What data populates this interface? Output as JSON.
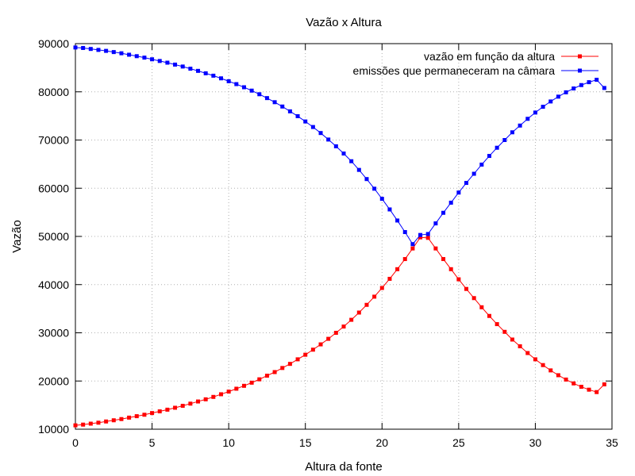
{
  "chart_data": {
    "type": "line",
    "title": "Vazão x Altura",
    "xlabel": "Altura da fonte",
    "ylabel": "Vazão",
    "xlim": [
      0,
      35
    ],
    "ylim": [
      10000,
      90000
    ],
    "xticks": [
      0,
      5,
      10,
      15,
      20,
      25,
      30,
      35
    ],
    "yticks": [
      10000,
      20000,
      30000,
      40000,
      50000,
      60000,
      70000,
      80000,
      90000
    ],
    "grid": true,
    "legend_position": "top-right",
    "series": [
      {
        "name": "vazão em função da altura",
        "color": "#ff0000",
        "x": [
          0,
          0.5,
          1,
          1.5,
          2,
          2.5,
          3,
          3.5,
          4,
          4.5,
          5,
          5.5,
          6,
          6.5,
          7,
          7.5,
          8,
          8.5,
          9,
          9.5,
          10,
          10.5,
          11,
          11.5,
          12,
          12.5,
          13,
          13.5,
          14,
          14.5,
          15,
          15.5,
          16,
          16.5,
          17,
          17.5,
          18,
          18.5,
          19,
          19.5,
          20,
          20.5,
          21,
          21.5,
          22,
          22.5,
          23,
          23.5,
          24,
          24.5,
          25,
          25.5,
          26,
          26.5,
          27,
          27.5,
          28,
          28.5,
          29,
          29.5,
          30,
          30.5,
          31,
          31.5,
          32,
          32.5,
          33,
          33.5,
          34,
          34.5
        ],
        "y": [
          10800,
          10950,
          11150,
          11350,
          11600,
          11850,
          12100,
          12400,
          12700,
          13000,
          13350,
          13700,
          14050,
          14450,
          14850,
          15300,
          15750,
          16200,
          16700,
          17250,
          17800,
          18400,
          19000,
          19650,
          20350,
          21100,
          21850,
          22700,
          23550,
          24500,
          25450,
          26500,
          27600,
          28750,
          30000,
          31300,
          32700,
          34200,
          35800,
          37500,
          39300,
          41200,
          43200,
          45300,
          47500,
          49800,
          49700,
          47500,
          45300,
          43200,
          41100,
          39100,
          37200,
          35300,
          33500,
          31800,
          30200,
          28600,
          27200,
          25800,
          24500,
          23300,
          22200,
          21200,
          20300,
          19500,
          18800,
          18200,
          17700,
          19300
        ]
      },
      {
        "name": "emissões que permaneceram na câmara",
        "color": "#0000ff",
        "x": [
          0,
          0.5,
          1,
          1.5,
          2,
          2.5,
          3,
          3.5,
          4,
          4.5,
          5,
          5.5,
          6,
          6.5,
          7,
          7.5,
          8,
          8.5,
          9,
          9.5,
          10,
          10.5,
          11,
          11.5,
          12,
          12.5,
          13,
          13.5,
          14,
          14.5,
          15,
          15.5,
          16,
          16.5,
          17,
          17.5,
          18,
          18.5,
          19,
          19.5,
          20,
          20.5,
          21,
          21.5,
          22,
          22.5,
          23,
          23.5,
          24,
          24.5,
          25,
          25.5,
          26,
          26.5,
          27,
          27.5,
          28,
          28.5,
          29,
          29.5,
          30,
          30.5,
          31,
          31.5,
          32,
          32.5,
          33,
          33.5,
          34,
          34.5
        ],
        "y": [
          89200,
          89100,
          88900,
          88700,
          88500,
          88250,
          88000,
          87700,
          87400,
          87100,
          86750,
          86400,
          86050,
          85650,
          85250,
          84800,
          84350,
          83850,
          83350,
          82800,
          82200,
          81600,
          80950,
          80250,
          79500,
          78700,
          77850,
          76950,
          75950,
          74950,
          73850,
          72700,
          71450,
          70100,
          68700,
          67200,
          65600,
          63800,
          61900,
          59900,
          57800,
          55600,
          53300,
          50900,
          48400,
          50300,
          50500,
          52700,
          54900,
          57000,
          59100,
          61100,
          63000,
          64900,
          66700,
          68400,
          70000,
          71600,
          73000,
          74400,
          75700,
          76900,
          78000,
          79000,
          79900,
          80700,
          81400,
          82000,
          82500,
          80800
        ]
      }
    ]
  }
}
